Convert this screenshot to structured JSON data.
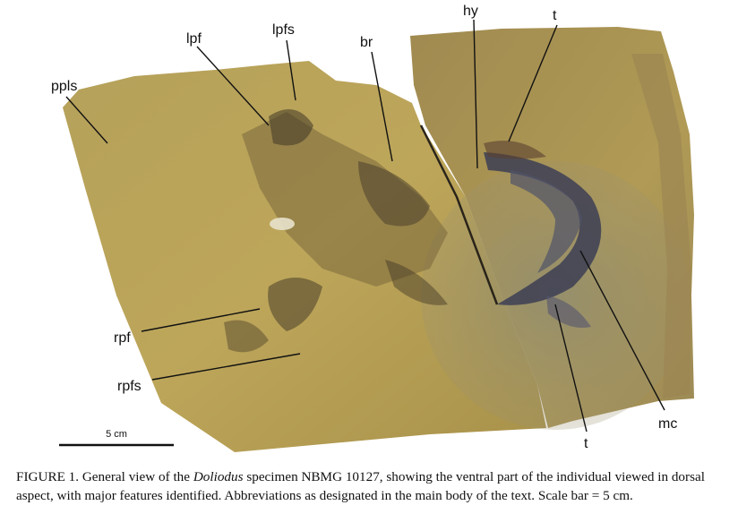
{
  "figure": {
    "labels": {
      "ppls": "ppls",
      "lpf": "lpf",
      "lpfs": "lpfs",
      "br": "br",
      "hy": "hy",
      "t_top": "t",
      "rpf": "rpf",
      "rpfs": "rpfs",
      "mc": "mc",
      "t_bottom": "t"
    },
    "scale_bar_label": "5 cm"
  },
  "caption": {
    "prefix": "FIGURE 1. General view of the ",
    "genus": "Doliodus",
    "suffix": " specimen NBMG 10127, showing the ventral part of the individual viewed in dorsal aspect, with major features identified. Abbreviations as designated in the main body of the text. Scale bar = 5 cm."
  },
  "colors": {
    "matrix_left": "#b8a050",
    "matrix_right": "#a89050",
    "fossil_dark": "#3a3a48",
    "grey_zone": "#8e8e7a"
  }
}
